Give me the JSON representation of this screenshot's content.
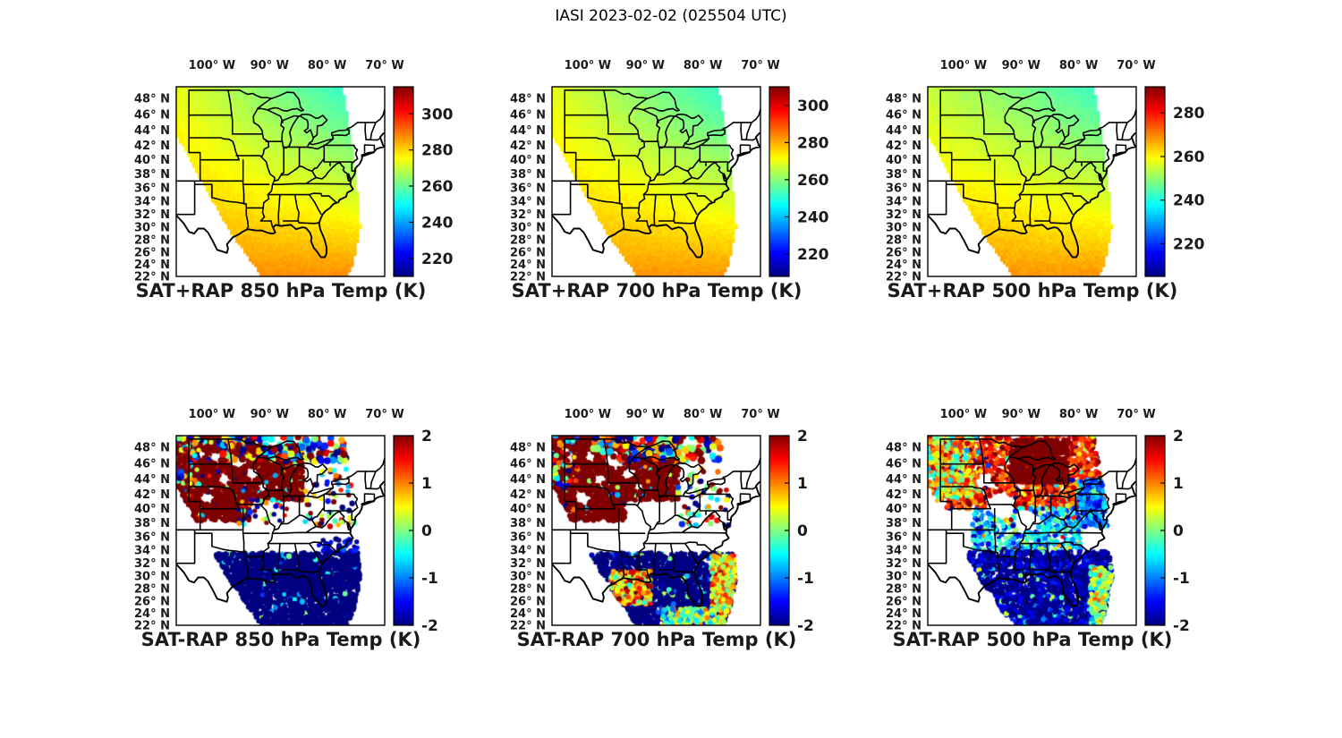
{
  "title": "IASI 2023-02-02 (025504 UTC)",
  "colors": {
    "background": "#ffffff",
    "text": "#000000",
    "map_outline": "#000000",
    "colormap": "jet"
  },
  "axes": {
    "lon_tick_labels": [
      "100° W",
      "90° W",
      "80° W",
      "70° W"
    ],
    "lon_tick_values": [
      -100,
      -90,
      -80,
      -70
    ],
    "lat_tick_labels": [
      "48° N",
      "46° N",
      "44° N",
      "42° N",
      "40° N",
      "38° N",
      "36° N",
      "34° N",
      "32° N",
      "30° N",
      "28° N",
      "26° N",
      "24° N",
      "22° N"
    ],
    "lat_tick_values": [
      48,
      46,
      44,
      42,
      40,
      38,
      36,
      34,
      32,
      30,
      28,
      26,
      24,
      22
    ],
    "lon_range": [
      -106.2,
      -70.0
    ],
    "lat_range": [
      22,
      49.4
    ],
    "projection": "mercator",
    "region": "Central and Eastern United States with state borders"
  },
  "chart_data": [
    {
      "id": "sat-plus-rap-850",
      "type": "map-field",
      "row": 0,
      "col": 0,
      "title": "SAT+RAP 850 hPa Temp (K)",
      "variable": "Temperature",
      "units": "K",
      "level_hPa": 850,
      "colorbar": {
        "colormap": "jet",
        "ticks": [
          220,
          240,
          260,
          280,
          300
        ],
        "range": [
          210,
          315
        ]
      },
      "field_model": {
        "south_K": 287.5,
        "northwest_K": 273,
        "northeast_K": 250
      },
      "description": "Smooth retrieved 850 hPa temperature: ~288 K (orange) along the Gulf Coast grading to ~273 K (yellow-green) over the northern Plains and ~250 K (cyan) over the Great Lakes/Northeast; tilted satellite swath leaves no data in far SW and NE corners."
    },
    {
      "id": "sat-plus-rap-700",
      "type": "map-field",
      "row": 0,
      "col": 1,
      "title": "SAT+RAP 700 hPa Temp (K)",
      "variable": "Temperature",
      "units": "K",
      "level_hPa": 700,
      "colorbar": {
        "colormap": "jet",
        "ticks": [
          220,
          240,
          260,
          280,
          300
        ],
        "range": [
          208,
          310
        ]
      },
      "field_model": {
        "south_K": 282.5,
        "northwest_K": 269,
        "northeast_K": 247
      },
      "description": "Smooth retrieved 700 hPa temperature: ~283 K (orange) over the Gulf, ~269 K (yellow-green) northwest, ~247 K (cyan) over the Great Lakes/Northeast; same tilted swath coverage."
    },
    {
      "id": "sat-plus-rap-500",
      "type": "map-field",
      "row": 0,
      "col": 2,
      "title": "SAT+RAP 500 hPa Temp (K)",
      "variable": "Temperature",
      "units": "K",
      "level_hPa": 500,
      "colorbar": {
        "colormap": "jet",
        "ticks": [
          220,
          240,
          260,
          280
        ],
        "range": [
          205,
          292
        ]
      },
      "field_model": {
        "south_K": 268.5,
        "northwest_K": 254,
        "northeast_K": 240
      },
      "description": "Smooth retrieved 500 hPa temperature: ~268 K (orange) south, ~254 K (green) northwest, ~240 K (cyan) northeast; same tilted swath coverage."
    },
    {
      "id": "sat-minus-rap-850",
      "type": "map-scatter",
      "row": 1,
      "col": 0,
      "title": "SAT-RAP 850 hPa Temp (K)",
      "variable": "Temperature difference",
      "units": "K",
      "level_hPa": 850,
      "colorbar": {
        "colormap": "jet",
        "ticks": [
          2,
          1,
          0,
          -1,
          -2
        ],
        "range": [
          -2,
          2
        ]
      },
      "regions": [
        {
          "area": "upper-midwest-blob",
          "diff_K": "> +2 (saturated dark red)"
        },
        {
          "area": "gulf-southeast-blob",
          "diff_K": "< -2 (saturated dark blue, cyan speckle)"
        },
        {
          "area": "northern-swath-edge",
          "diff_K": "mixed -2 to +2 large speckled dots"
        },
        {
          "area": "mid-latitude-band-34-38N",
          "diff_K": "no retrievals (blank)"
        }
      ],
      "description": "850 hPa SAT-RAP differences: dense warm bias blob (>+2 K) over the upper Midwest with cloud gaps; dense cold bias blob (<-2 K) over the Gulf Coast and Southeast offshore; multicolor speckle along the north swath edge; few points elsewhere."
    },
    {
      "id": "sat-minus-rap-700",
      "type": "map-scatter",
      "row": 1,
      "col": 1,
      "title": "SAT-RAP 700 hPa Temp (K)",
      "variable": "Temperature difference",
      "units": "K",
      "level_hPa": 700,
      "colorbar": {
        "colormap": "jet",
        "ticks": [
          2,
          1,
          0,
          -1,
          -2
        ],
        "range": [
          -2,
          2
        ]
      },
      "regions": [
        {
          "area": "upper-midwest-blob",
          "diff_K": "> +2 (saturated dark red)"
        },
        {
          "area": "gulf-southeast-blob",
          "diff_K": "< -2 with warm orange patches near western Gulf coast"
        },
        {
          "area": "southeast-swath-edge",
          "diff_K": "0 to +1.5 yellow-orange fringe"
        },
        {
          "area": "northern-swath-edge",
          "diff_K": "mixed -2 to +2 large speckled dots"
        }
      ],
      "description": "700 hPa SAT-RAP differences: same warm blob over the upper Midwest and cold blob over the Gulf/Southeast, plus orange/red patches near the Louisiana-Texas coast and a yellow-orange fringe on the southeastern swath edge."
    },
    {
      "id": "sat-minus-rap-500",
      "type": "map-scatter",
      "row": 1,
      "col": 2,
      "title": "SAT-RAP 500 hPa Temp (K)",
      "variable": "Temperature difference",
      "units": "K",
      "level_hPa": 500,
      "colorbar": {
        "colormap": "jet",
        "ticks": [
          2,
          1,
          0,
          -1,
          -2
        ],
        "range": [
          -2,
          2
        ]
      },
      "regions": [
        {
          "area": "northern-states",
          "diff_K": "+1 to >+2 orange/red speckle, darkest red over Great Lakes"
        },
        {
          "area": "west-plains",
          "diff_K": "mixed cyan/green/yellow speckle"
        },
        {
          "area": "southeast-gulf",
          "diff_K": "-1 to -2 blue with cyan speckle"
        },
        {
          "area": "northeast",
          "diff_K": "-0.5 to -1.5 cyan/blue sparse"
        }
      ],
      "description": "500 hPa SAT-RAP differences: widespread speckle — warm (+1 to >+2 K) over the northern tier peaking dark red around the western Great Lakes, mixed near-zero values in mid latitudes, cold (-1 to -2 K) over the Southeast and Gulf with a yellow fringe on the east swath edge."
    }
  ]
}
